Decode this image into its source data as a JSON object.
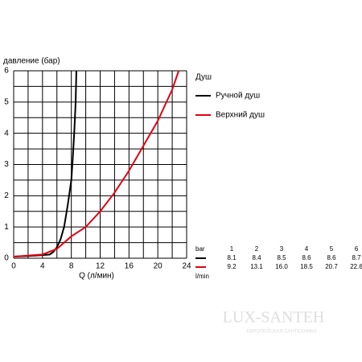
{
  "chart_data": {
    "type": "line",
    "ylabel": "давление (бар)",
    "xlabel": "Q (л/мин)",
    "legend_title": "Душ",
    "xlim": [
      0,
      24
    ],
    "xticks": [
      0,
      4,
      8,
      12,
      16,
      20,
      24
    ],
    "ylim": [
      0,
      6
    ],
    "yticks": [
      0,
      1,
      2,
      3,
      4,
      5,
      6
    ],
    "xgrid": [
      0,
      2,
      4,
      6,
      8,
      10,
      12,
      14,
      16,
      18,
      20,
      22,
      24
    ],
    "ygrid": [
      0,
      0.5,
      1,
      1.5,
      2,
      2.5,
      3,
      3.5,
      4,
      4.5,
      5,
      5.5,
      6
    ],
    "grid": true,
    "series": [
      {
        "name": "Ручной душ",
        "color": "#000000",
        "x": [
          0,
          2,
          4,
          5,
          5.5,
          6,
          6.5,
          7,
          7.5,
          8,
          8.2,
          8.4,
          8.6,
          8.7
        ],
        "values": [
          0.05,
          0.07,
          0.1,
          0.12,
          0.2,
          0.35,
          0.6,
          1,
          1.7,
          2.5,
          3.2,
          4,
          5,
          6
        ],
        "table_values": [
          8.1,
          8.4,
          8.5,
          8.6,
          8.6,
          8.7
        ]
      },
      {
        "name": "Верхний душ",
        "color": "#e3000f",
        "x": [
          0,
          4,
          6,
          8,
          10,
          12,
          14,
          16,
          18,
          20,
          22,
          22.9
        ],
        "values": [
          0.05,
          0.12,
          0.3,
          0.7,
          1.0,
          1.5,
          2.1,
          2.8,
          3.6,
          4.4,
          5.4,
          6
        ],
        "table_values": [
          9.2,
          13.1,
          16,
          18.5,
          20.7,
          22.6
        ],
        "table_value_labels": [
          "9.2",
          "13.1",
          "16.0",
          "18.5",
          "20.7",
          "22.6"
        ]
      }
    ],
    "table": {
      "header": "bar",
      "unit": "l/min",
      "pressures": [
        1,
        2,
        3,
        4,
        5,
        6
      ]
    }
  },
  "watermark": {
    "brand": "LUX-SANTEH",
    "tagline": "ЕВРОПЕЙСКАЯ САНТЕХНИКА"
  }
}
